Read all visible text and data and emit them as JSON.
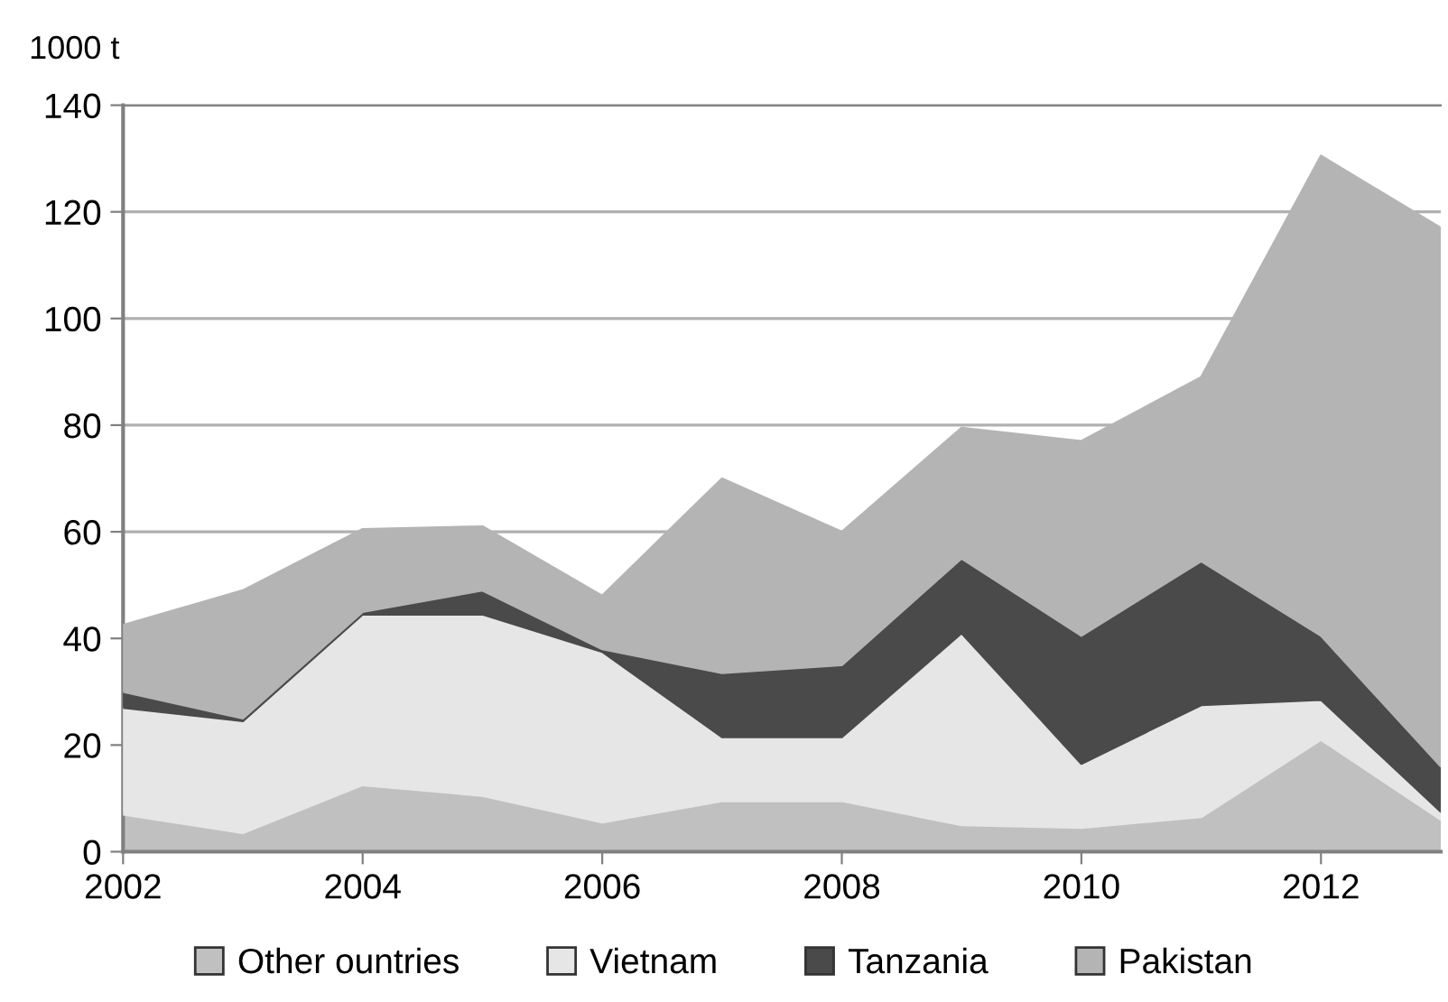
{
  "chart_data": {
    "type": "area",
    "stacked": true,
    "ylabel": "1000 t",
    "x": [
      2002,
      2003,
      2004,
      2005,
      2006,
      2007,
      2008,
      2009,
      2010,
      2011,
      2012,
      2013
    ],
    "xlim": [
      2002,
      2013
    ],
    "xticks": [
      2002,
      2004,
      2006,
      2008,
      2010,
      2012
    ],
    "ylim": [
      0,
      140
    ],
    "yticks": [
      0,
      20,
      40,
      60,
      80,
      100,
      120,
      140
    ],
    "grid": "y",
    "legend": "bottom",
    "series": [
      {
        "name": "Other ountries",
        "color": "#c0c0c0",
        "values": [
          7,
          3.5,
          12.5,
          10.5,
          5.5,
          9.5,
          9.5,
          5,
          4.5,
          6.5,
          21,
          6
        ]
      },
      {
        "name": "Vietnam",
        "color": "#e6e6e6",
        "values": [
          20,
          21,
          32,
          34,
          32,
          12,
          12,
          36,
          12,
          21,
          7.5,
          1.5
        ]
      },
      {
        "name": "Tanzania",
        "color": "#4a4a4a",
        "values": [
          3,
          0.5,
          0.5,
          4.5,
          0.5,
          12,
          13.5,
          14,
          24,
          27,
          12,
          8.5
        ]
      },
      {
        "name": "Pakistan",
        "color": "#b4b4b4",
        "values": [
          12.5,
          24,
          15.5,
          12,
          10,
          36.5,
          25,
          24.5,
          36.5,
          34.5,
          90,
          101
        ]
      }
    ]
  }
}
